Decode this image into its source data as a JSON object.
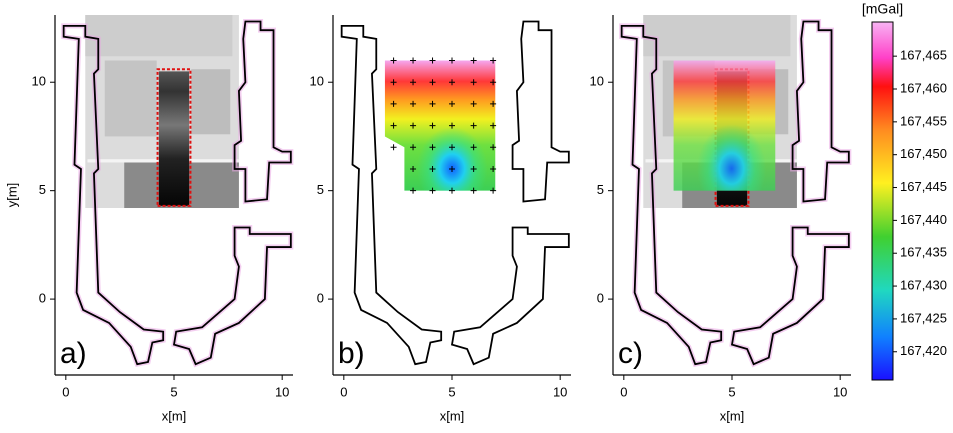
{
  "chart_data": [
    {
      "type": "map",
      "panel_label": "a)",
      "xlabel": "x[m]",
      "ylabel": "y[m]",
      "xlim": [
        -0.5,
        10.5
      ],
      "ylim": [
        -3.5,
        13.1
      ],
      "xticks": [
        0,
        5,
        10
      ],
      "yticks": [
        0,
        5,
        10
      ]
    },
    {
      "type": "map",
      "panel_label": "b)",
      "xlabel": "x[m]",
      "xlim": [
        -0.5,
        10.5
      ],
      "ylim": [
        -3.5,
        13.1
      ],
      "xticks": [
        0,
        5,
        10
      ],
      "yticks": [
        0,
        5,
        10
      ],
      "stations": {
        "x": [
          2.3,
          3.2,
          4.1,
          5.0,
          6.0,
          6.9,
          2.3,
          3.2,
          4.1,
          5.0,
          6.0,
          6.9,
          2.3,
          3.2,
          4.1,
          5.0,
          6.0,
          6.9,
          2.3,
          3.2,
          4.1,
          5.0,
          6.0,
          6.9,
          2.3,
          3.2,
          4.1,
          5.0,
          6.0,
          6.9,
          3.2,
          4.1,
          5.0,
          6.0,
          6.9,
          3.2,
          4.1,
          5.0,
          6.0,
          6.9
        ],
        "y": [
          11,
          11,
          11,
          11,
          11,
          11,
          10,
          10,
          10,
          10,
          10,
          10,
          9,
          9,
          9,
          9,
          9,
          9,
          8,
          8,
          8,
          8,
          8,
          8,
          7,
          7,
          7,
          7,
          7,
          7,
          6,
          6,
          6,
          6,
          6,
          5,
          5,
          5,
          5,
          5
        ]
      }
    },
    {
      "type": "map",
      "panel_label": "c)",
      "xlabel": "x[m]",
      "xlim": [
        -0.5,
        10.5
      ],
      "ylim": [
        -3.5,
        13.1
      ],
      "xticks": [
        0,
        5,
        10
      ],
      "yticks": [
        0,
        5,
        10
      ]
    },
    {
      "type": "colorbar",
      "title": "[mGal]",
      "ylim": [
        167.4157,
        167.4702
      ],
      "yticks": [
        {
          "value": 167.42,
          "label": "167,420"
        },
        {
          "value": 167.425,
          "label": "167,425"
        },
        {
          "value": 167.43,
          "label": "167,430"
        },
        {
          "value": 167.435,
          "label": "167,435"
        },
        {
          "value": 167.44,
          "label": "167,440"
        },
        {
          "value": 167.445,
          "label": "167,445"
        },
        {
          "value": 167.45,
          "label": "167,450"
        },
        {
          "value": 167.455,
          "label": "167,455"
        },
        {
          "value": 167.46,
          "label": "167,460"
        },
        {
          "value": 167.465,
          "label": "167,465"
        }
      ]
    }
  ]
}
